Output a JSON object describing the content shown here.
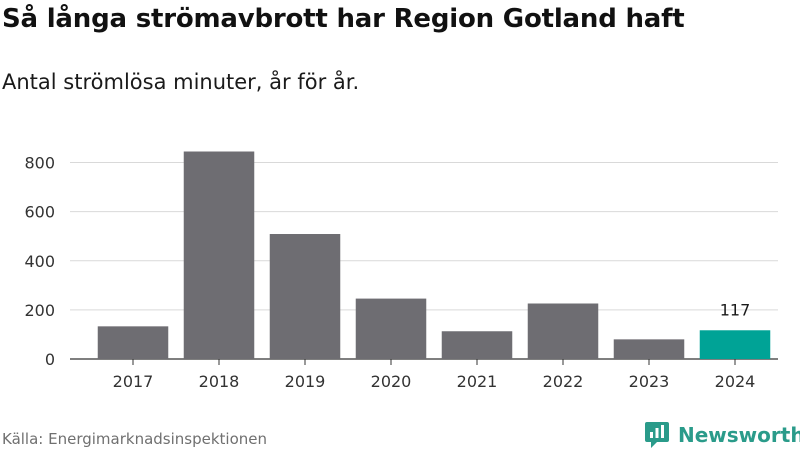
{
  "title": "Så långa strömavbrott har Region Gotland haft",
  "subtitle": "Antal strömlösa minuter, år för år.",
  "source": "Källa: Energimarknadsinspektionen",
  "logo": {
    "text": "Newsworthy",
    "icon": "newsworthy-logo-icon",
    "color": "#2a9b8a"
  },
  "chart_data": {
    "type": "bar",
    "categories": [
      "2017",
      "2018",
      "2019",
      "2020",
      "2021",
      "2022",
      "2023",
      "2024"
    ],
    "values": [
      133,
      845,
      509,
      246,
      113,
      226,
      80,
      117
    ],
    "ylim": [
      0,
      900
    ],
    "yticks": [
      0,
      200,
      400,
      600,
      800
    ],
    "grid": true,
    "bar_color": "#6e6d72",
    "highlight_color": "#00a396",
    "highlight_index": 7,
    "data_labels": [
      {
        "index": 7,
        "text": "117"
      }
    ]
  }
}
